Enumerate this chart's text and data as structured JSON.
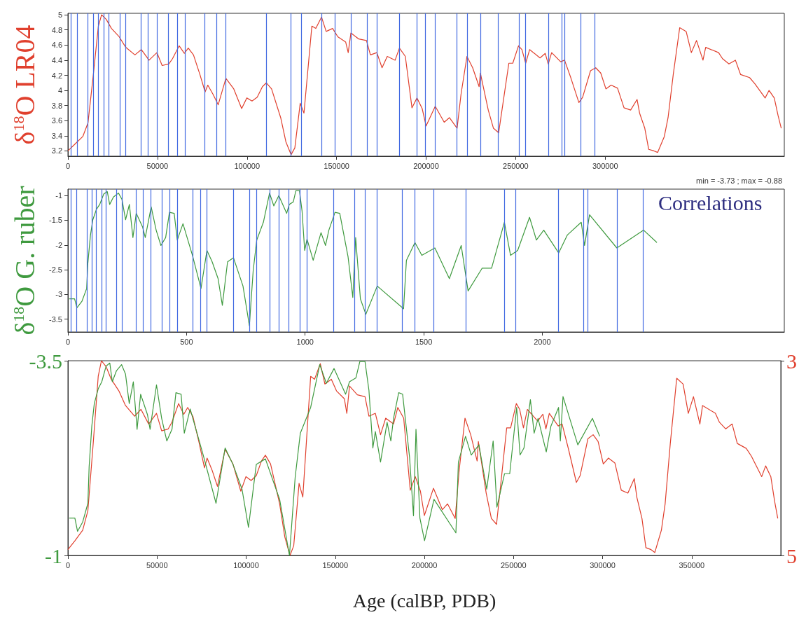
{
  "chart_data": [
    {
      "type": "line",
      "ylabel": "δ$^{18}$O LR04",
      "xlim": [
        0,
        400000
      ],
      "xticks": [
        0,
        50000,
        100000,
        150000,
        200000,
        250000,
        300000
      ],
      "ylim": [
        3.13,
        5.02
      ],
      "yticks": [
        3.2,
        3.4,
        3.6,
        3.8,
        4,
        4.2,
        4.4,
        4.6,
        4.8,
        5
      ],
      "series": [
        {
          "color": "#e0402e",
          "x": [
            0,
            3900,
            8300,
            11200,
            14100,
            17000,
            18800,
            21400,
            24300,
            28600,
            32300,
            37400,
            41000,
            45300,
            49700,
            52600,
            56300,
            58400,
            62100,
            65000,
            67200,
            70100,
            73700,
            76600,
            78100,
            81000,
            83900,
            88200,
            92600,
            97000,
            99900,
            102800,
            105700,
            108600,
            110800,
            113700,
            118800,
            121700,
            124600,
            126700,
            129700,
            131800,
            136200,
            138400,
            141600,
            144200,
            147800,
            150700,
            155100,
            156500,
            158000,
            162400,
            166700,
            168900,
            172500,
            175400,
            178300,
            182700,
            185100,
            188400,
            192100,
            194900,
            197800,
            200000,
            205100,
            210100,
            213000,
            217300,
            219500,
            222800,
            226000,
            229600,
            230300,
            234700,
            237600,
            240500,
            246200,
            248400,
            251600,
            253500,
            255600,
            257800,
            263600,
            266500,
            268200,
            270100,
            275100,
            277300,
            280900,
            285300,
            287400,
            291800,
            294700,
            297500,
            300400,
            303300,
            306900,
            310500,
            314200,
            317800,
            319200,
            322100,
            324300,
            327200,
            329300,
            333000,
            335100,
            338000,
            341600,
            345200,
            348100,
            351000,
            354600,
            356100,
            363300,
            365500,
            369100,
            372700,
            375600,
            380600,
            383500,
            389300,
            391500,
            394400,
            396500,
            398300
          ],
          "values": [
            3.2,
            3.29,
            3.39,
            3.57,
            4.19,
            4.85,
            5.0,
            4.94,
            4.82,
            4.71,
            4.57,
            4.47,
            4.54,
            4.4,
            4.5,
            4.33,
            4.35,
            4.42,
            4.59,
            4.49,
            4.56,
            4.47,
            4.21,
            3.98,
            4.07,
            3.95,
            3.81,
            4.16,
            4.02,
            3.76,
            3.9,
            3.86,
            3.91,
            4.05,
            4.1,
            4.02,
            3.64,
            3.32,
            3.15,
            3.24,
            3.83,
            3.7,
            4.85,
            4.82,
            4.97,
            4.78,
            4.82,
            4.71,
            4.64,
            4.5,
            4.76,
            4.68,
            4.66,
            4.47,
            4.5,
            4.3,
            4.45,
            4.4,
            4.56,
            4.45,
            3.77,
            3.9,
            3.76,
            3.53,
            3.79,
            3.58,
            3.64,
            3.5,
            3.95,
            4.45,
            4.3,
            4.05,
            4.23,
            3.74,
            3.5,
            3.44,
            4.36,
            4.36,
            4.59,
            4.54,
            4.36,
            4.54,
            4.43,
            4.49,
            4.35,
            4.5,
            4.38,
            4.4,
            4.16,
            3.84,
            3.91,
            4.26,
            4.3,
            4.23,
            4.02,
            4.07,
            4.03,
            3.77,
            3.74,
            3.88,
            3.7,
            3.5,
            3.22,
            3.2,
            3.18,
            3.39,
            3.64,
            4.21,
            4.83,
            4.78,
            4.5,
            4.66,
            4.4,
            4.57,
            4.5,
            4.42,
            4.35,
            4.4,
            4.21,
            4.17,
            4.09,
            3.9,
            4.0,
            3.9,
            3.67,
            3.5
          ]
        }
      ],
      "ref_lines": [
        {
          "axis": "x",
          "value": 1700,
          "color": "#4169e1"
        },
        {
          "axis": "x",
          "value": 5100,
          "color": "#4169e1"
        },
        {
          "axis": "x",
          "value": 11200,
          "color": "#4169e1"
        },
        {
          "axis": "x",
          "value": 14100,
          "color": "#4169e1"
        },
        {
          "axis": "x",
          "value": 17000,
          "color": "#4169e1"
        },
        {
          "axis": "x",
          "value": 19900,
          "color": "#4169e1"
        },
        {
          "axis": "x",
          "value": 22800,
          "color": "#4169e1"
        },
        {
          "axis": "x",
          "value": 28900,
          "color": "#4169e1"
        },
        {
          "axis": "x",
          "value": 32300,
          "color": "#4169e1"
        },
        {
          "axis": "x",
          "value": 40700,
          "color": "#4169e1"
        },
        {
          "axis": "x",
          "value": 44800,
          "color": "#4169e1"
        },
        {
          "axis": "x",
          "value": 49600,
          "color": "#4169e1"
        },
        {
          "axis": "x",
          "value": 56000,
          "color": "#4169e1"
        },
        {
          "axis": "x",
          "value": 60900,
          "color": "#4169e1"
        },
        {
          "axis": "x",
          "value": 65400,
          "color": "#4169e1"
        },
        {
          "axis": "x",
          "value": 76200,
          "color": "#4169e1"
        },
        {
          "axis": "x",
          "value": 82800,
          "color": "#4169e1"
        },
        {
          "axis": "x",
          "value": 88200,
          "color": "#4169e1"
        },
        {
          "axis": "x",
          "value": 110800,
          "color": "#4169e1"
        },
        {
          "axis": "x",
          "value": 124300,
          "color": "#4169e1"
        },
        {
          "axis": "x",
          "value": 130400,
          "color": "#4169e1"
        },
        {
          "axis": "x",
          "value": 141600,
          "color": "#4169e1"
        },
        {
          "axis": "x",
          "value": 149000,
          "color": "#4169e1"
        },
        {
          "axis": "x",
          "value": 158000,
          "color": "#4169e1"
        },
        {
          "axis": "x",
          "value": 167000,
          "color": "#4169e1"
        },
        {
          "axis": "x",
          "value": 172500,
          "color": "#4169e1"
        },
        {
          "axis": "x",
          "value": 185100,
          "color": "#4169e1"
        },
        {
          "axis": "x",
          "value": 194700,
          "color": "#4169e1"
        },
        {
          "axis": "x",
          "value": 199700,
          "color": "#4169e1"
        },
        {
          "axis": "x",
          "value": 205100,
          "color": "#4169e1"
        },
        {
          "axis": "x",
          "value": 217100,
          "color": "#4169e1"
        },
        {
          "axis": "x",
          "value": 222800,
          "color": "#4169e1"
        },
        {
          "axis": "x",
          "value": 230300,
          "color": "#4169e1"
        },
        {
          "axis": "x",
          "value": 240200,
          "color": "#4169e1"
        },
        {
          "axis": "x",
          "value": 251900,
          "color": "#4169e1"
        },
        {
          "axis": "x",
          "value": 255300,
          "color": "#4169e1"
        },
        {
          "axis": "x",
          "value": 268200,
          "color": "#4169e1"
        },
        {
          "axis": "x",
          "value": 275900,
          "color": "#4169e1"
        },
        {
          "axis": "x",
          "value": 277300,
          "color": "#4169e1"
        },
        {
          "axis": "x",
          "value": 286300,
          "color": "#4169e1"
        },
        {
          "axis": "x",
          "value": 294200,
          "color": "#4169e1"
        }
      ]
    },
    {
      "type": "line",
      "ylabel": "δ$^{18}$O G. ruber",
      "annotations": [
        "min = -3.73 ; max = -0.88",
        "Correlations"
      ],
      "xlim": [
        0,
        3020
      ],
      "xticks": [
        0,
        500,
        1000,
        1500,
        2000
      ],
      "ylim": [
        -3.76,
        -0.87
      ],
      "yticks": [
        -3.5,
        -3,
        -2.5,
        -2,
        -1.5,
        -1
      ],
      "series": [
        {
          "color": "#3f9a3f",
          "x": [
            5,
            28,
            38,
            59,
            79,
            84,
            95,
            105,
            120,
            134,
            151,
            166,
            176,
            192,
            213,
            228,
            243,
            259,
            274,
            288,
            315,
            326,
            351,
            372,
            392,
            412,
            428,
            448,
            461,
            485,
            525,
            561,
            586,
            608,
            633,
            651,
            673,
            698,
            738,
            765,
            781,
            796,
            824,
            850,
            868,
            889,
            922,
            933,
            950,
            961,
            976,
            987,
            998,
            1008,
            1034,
            1067,
            1086,
            1100,
            1126,
            1146,
            1181,
            1201,
            1213,
            1233,
            1256,
            1304,
            1415,
            1427,
            1463,
            1492,
            1547,
            1608,
            1658,
            1687,
            1746,
            1786,
            1840,
            1866,
            1896,
            1946,
            1975,
            2006,
            2069,
            2105,
            2164,
            2178,
            2199,
            2314,
            2427,
            2483
          ],
          "values": [
            -3.09,
            -3.09,
            -3.27,
            -3.14,
            -2.88,
            -2.37,
            -1.8,
            -1.49,
            -1.28,
            -1.18,
            -0.97,
            -0.92,
            -1.18,
            -1.03,
            -0.95,
            -1.08,
            -1.49,
            -1.18,
            -1.85,
            -1.36,
            -1.64,
            -1.85,
            -1.23,
            -1.7,
            -2.01,
            -1.85,
            -1.34,
            -1.36,
            -1.9,
            -1.57,
            -2.21,
            -2.88,
            -2.11,
            -2.34,
            -2.68,
            -3.22,
            -2.34,
            -2.26,
            -2.83,
            -3.63,
            -2.52,
            -1.9,
            -1.54,
            -0.95,
            -1.21,
            -1.0,
            -1.36,
            -1.18,
            -1.13,
            -0.9,
            -0.9,
            -1.31,
            -2.11,
            -1.88,
            -2.31,
            -1.75,
            -2.01,
            -1.7,
            -1.34,
            -1.36,
            -2.24,
            -3.06,
            -1.85,
            -3.09,
            -3.4,
            -2.83,
            -3.29,
            -2.31,
            -1.95,
            -2.21,
            -2.06,
            -2.68,
            -2.01,
            -2.93,
            -2.47,
            -2.47,
            -1.54,
            -2.21,
            -2.11,
            -1.44,
            -1.9,
            -1.7,
            -2.16,
            -1.8,
            -1.54,
            -2.01,
            -1.39,
            -2.06,
            -1.7,
            -1.95
          ]
        }
      ],
      "ref_lines": [
        {
          "axis": "x",
          "value": 12,
          "color": "#4169e1"
        },
        {
          "axis": "x",
          "value": 36,
          "color": "#4169e1"
        },
        {
          "axis": "x",
          "value": 79,
          "color": "#4169e1"
        },
        {
          "axis": "x",
          "value": 100,
          "color": "#4169e1"
        },
        {
          "axis": "x",
          "value": 120,
          "color": "#4169e1"
        },
        {
          "axis": "x",
          "value": 141,
          "color": "#4169e1"
        },
        {
          "axis": "x",
          "value": 161,
          "color": "#4169e1"
        },
        {
          "axis": "x",
          "value": 204,
          "color": "#4169e1"
        },
        {
          "axis": "x",
          "value": 228,
          "color": "#4169e1"
        },
        {
          "axis": "x",
          "value": 287,
          "color": "#4169e1"
        },
        {
          "axis": "x",
          "value": 316,
          "color": "#4169e1"
        },
        {
          "axis": "x",
          "value": 350,
          "color": "#4169e1"
        },
        {
          "axis": "x",
          "value": 395,
          "color": "#4169e1"
        },
        {
          "axis": "x",
          "value": 430,
          "color": "#4169e1"
        },
        {
          "axis": "x",
          "value": 462,
          "color": "#4169e1"
        },
        {
          "axis": "x",
          "value": 527,
          "color": "#4169e1"
        },
        {
          "axis": "x",
          "value": 559,
          "color": "#4169e1"
        },
        {
          "axis": "x",
          "value": 586,
          "color": "#4169e1"
        },
        {
          "axis": "x",
          "value": 698,
          "color": "#4169e1"
        },
        {
          "axis": "x",
          "value": 765,
          "color": "#4169e1"
        },
        {
          "axis": "x",
          "value": 796,
          "color": "#4169e1"
        },
        {
          "axis": "x",
          "value": 851,
          "color": "#4169e1"
        },
        {
          "axis": "x",
          "value": 888,
          "color": "#4169e1"
        },
        {
          "axis": "x",
          "value": 932,
          "color": "#4169e1"
        },
        {
          "axis": "x",
          "value": 977,
          "color": "#4169e1"
        },
        {
          "axis": "x",
          "value": 1008,
          "color": "#4169e1"
        },
        {
          "axis": "x",
          "value": 1121,
          "color": "#4169e1"
        },
        {
          "axis": "x",
          "value": 1208,
          "color": "#4169e1"
        },
        {
          "axis": "x",
          "value": 1253,
          "color": "#4169e1"
        },
        {
          "axis": "x",
          "value": 1302,
          "color": "#4169e1"
        },
        {
          "axis": "x",
          "value": 1410,
          "color": "#4169e1"
        },
        {
          "axis": "x",
          "value": 1461,
          "color": "#4169e1"
        },
        {
          "axis": "x",
          "value": 1542,
          "color": "#4169e1"
        },
        {
          "axis": "x",
          "value": 1679,
          "color": "#4169e1"
        },
        {
          "axis": "x",
          "value": 1841,
          "color": "#4169e1"
        },
        {
          "axis": "x",
          "value": 1888,
          "color": "#4169e1"
        },
        {
          "axis": "x",
          "value": 2066,
          "color": "#4169e1"
        },
        {
          "axis": "x",
          "value": 2173,
          "color": "#4169e1"
        },
        {
          "axis": "x",
          "value": 2192,
          "color": "#4169e1"
        },
        {
          "axis": "x",
          "value": 2316,
          "color": "#4169e1"
        },
        {
          "axis": "x",
          "value": 2425,
          "color": "#4169e1"
        }
      ]
    },
    {
      "type": "line",
      "xlabel": "Age (calBP, PDB)",
      "xlim": [
        0,
        400000
      ],
      "xticks": [
        0,
        50000,
        100000,
        150000,
        200000,
        250000,
        300000,
        350000
      ],
      "ylim": [
        -1,
        -3.5
      ],
      "yticks": [
        -1,
        -3.5
      ],
      "y2lim": [
        5,
        3
      ],
      "y2ticks": [
        5,
        3
      ],
      "series": [
        {
          "color": "#e0402e",
          "axis": "y2",
          "x": [
            0,
            3900,
            8300,
            11200,
            14100,
            17000,
            18800,
            21400,
            24300,
            28600,
            32300,
            37400,
            41000,
            45300,
            49700,
            52600,
            56300,
            58400,
            62100,
            65000,
            67200,
            70100,
            73700,
            76600,
            78100,
            81000,
            83900,
            88200,
            92600,
            97000,
            99900,
            102800,
            105700,
            108600,
            110800,
            113700,
            118800,
            121700,
            124600,
            126700,
            129700,
            131800,
            136200,
            138400,
            141600,
            144200,
            147800,
            150700,
            155100,
            156500,
            158000,
            162400,
            166700,
            168900,
            172500,
            175400,
            178300,
            182700,
            185100,
            188400,
            192100,
            194900,
            197800,
            200000,
            205100,
            210100,
            213000,
            217300,
            219500,
            222800,
            226000,
            229600,
            230300,
            234700,
            237600,
            240500,
            246200,
            248400,
            251600,
            253500,
            255600,
            257800,
            263600,
            266500,
            268200,
            270100,
            275100,
            277300,
            280900,
            285300,
            287400,
            291800,
            294700,
            297500,
            300400,
            303300,
            306900,
            310500,
            314200,
            317800,
            319200,
            322100,
            324300,
            327200,
            329300,
            333000,
            335100,
            338000,
            341600,
            345200,
            348100,
            351000,
            354600,
            356100,
            363300,
            365500,
            369100,
            372700,
            375600,
            380600,
            383500,
            389300,
            391500,
            394400,
            396500,
            398300
          ],
          "values": [
            4.94,
            4.85,
            4.74,
            4.54,
            3.87,
            3.16,
            3.0,
            3.06,
            3.19,
            3.31,
            3.46,
            3.57,
            3.5,
            3.65,
            3.54,
            3.72,
            3.7,
            3.63,
            3.44,
            3.55,
            3.48,
            3.57,
            3.85,
            4.1,
            4.0,
            4.13,
            4.29,
            3.91,
            4.06,
            4.34,
            4.19,
            4.23,
            4.18,
            4.03,
            3.97,
            4.06,
            4.47,
            4.81,
            5.0,
            4.9,
            4.26,
            4.4,
            3.16,
            3.19,
            3.03,
            3.24,
            3.19,
            3.31,
            3.39,
            3.54,
            3.26,
            3.35,
            3.37,
            3.57,
            3.54,
            3.76,
            3.59,
            3.65,
            3.48,
            3.59,
            4.33,
            4.19,
            4.34,
            4.59,
            4.31,
            4.53,
            4.47,
            4.62,
            4.13,
            3.59,
            3.76,
            4.03,
            3.83,
            4.36,
            4.62,
            4.68,
            3.69,
            3.69,
            3.44,
            3.5,
            3.69,
            3.5,
            3.62,
            3.55,
            3.7,
            3.54,
            3.67,
            3.65,
            3.91,
            4.25,
            4.18,
            3.8,
            3.76,
            3.83,
            4.06,
            4.0,
            4.05,
            4.33,
            4.36,
            4.21,
            4.4,
            4.62,
            4.92,
            4.94,
            4.97,
            4.74,
            4.47,
            3.85,
            3.18,
            3.24,
            3.54,
            3.37,
            3.65,
            3.46,
            3.54,
            3.63,
            3.7,
            3.65,
            3.85,
            3.9,
            3.98,
            4.19,
            4.08,
            4.19,
            4.44,
            4.62
          ]
        },
        {
          "color": "#3f9a3f",
          "x": [
            700,
            3900,
            5400,
            8300,
            11200,
            11900,
            13400,
            14800,
            17000,
            19000,
            21400,
            23500,
            24900,
            27200,
            30100,
            32300,
            34400,
            36700,
            38800,
            40800,
            44600,
            46100,
            49700,
            52600,
            55500,
            58400,
            60600,
            63500,
            65300,
            68600,
            75900,
            83100,
            88200,
            92600,
            97700,
            101300,
            105700,
            110800,
            118800,
            124300,
            127500,
            130400,
            136200,
            141300,
            145000,
            149300,
            155800,
            158000,
            161600,
            163800,
            166700,
            168900,
            171100,
            172500,
            175400,
            179100,
            181200,
            182700,
            185600,
            187800,
            191700,
            193900,
            195300,
            197500,
            200100,
            205400,
            217700,
            219100,
            223100,
            226300,
            230600,
            235000,
            238600,
            240700,
            245000,
            247900,
            251800,
            253700,
            255900,
            259500,
            261600,
            263800,
            268400,
            271000,
            275300,
            276300,
            277800,
            286100,
            294300,
            298400
          ],
          "values": [
            -1.48,
            -1.48,
            -1.31,
            -1.43,
            -1.67,
            -2.14,
            -2.66,
            -2.95,
            -3.14,
            -3.23,
            -3.43,
            -3.47,
            -3.23,
            -3.37,
            -3.45,
            -3.33,
            -2.95,
            -3.23,
            -2.62,
            -3.07,
            -2.81,
            -2.62,
            -3.19,
            -2.76,
            -2.47,
            -2.62,
            -3.09,
            -3.07,
            -2.57,
            -2.88,
            -2.29,
            -1.67,
            -2.38,
            -2.17,
            -1.85,
            -1.36,
            -2.17,
            -2.24,
            -1.72,
            -1.0,
            -2.0,
            -2.57,
            -2.9,
            -3.45,
            -3.21,
            -3.4,
            -3.07,
            -3.23,
            -3.28,
            -3.49,
            -3.49,
            -3.12,
            -2.38,
            -2.59,
            -2.2,
            -2.71,
            -2.47,
            -2.76,
            -3.09,
            -3.07,
            -2.26,
            -1.51,
            -2.62,
            -1.48,
            -1.19,
            -1.72,
            -1.29,
            -2.2,
            -2.53,
            -2.29,
            -2.42,
            -1.85,
            -2.47,
            -1.62,
            -2.05,
            -2.05,
            -2.9,
            -2.29,
            -2.38,
            -3.0,
            -2.57,
            -2.76,
            -2.33,
            -2.66,
            -2.9,
            -2.47,
            -3.04,
            -2.42,
            -2.76,
            -2.53
          ]
        }
      ]
    }
  ]
}
